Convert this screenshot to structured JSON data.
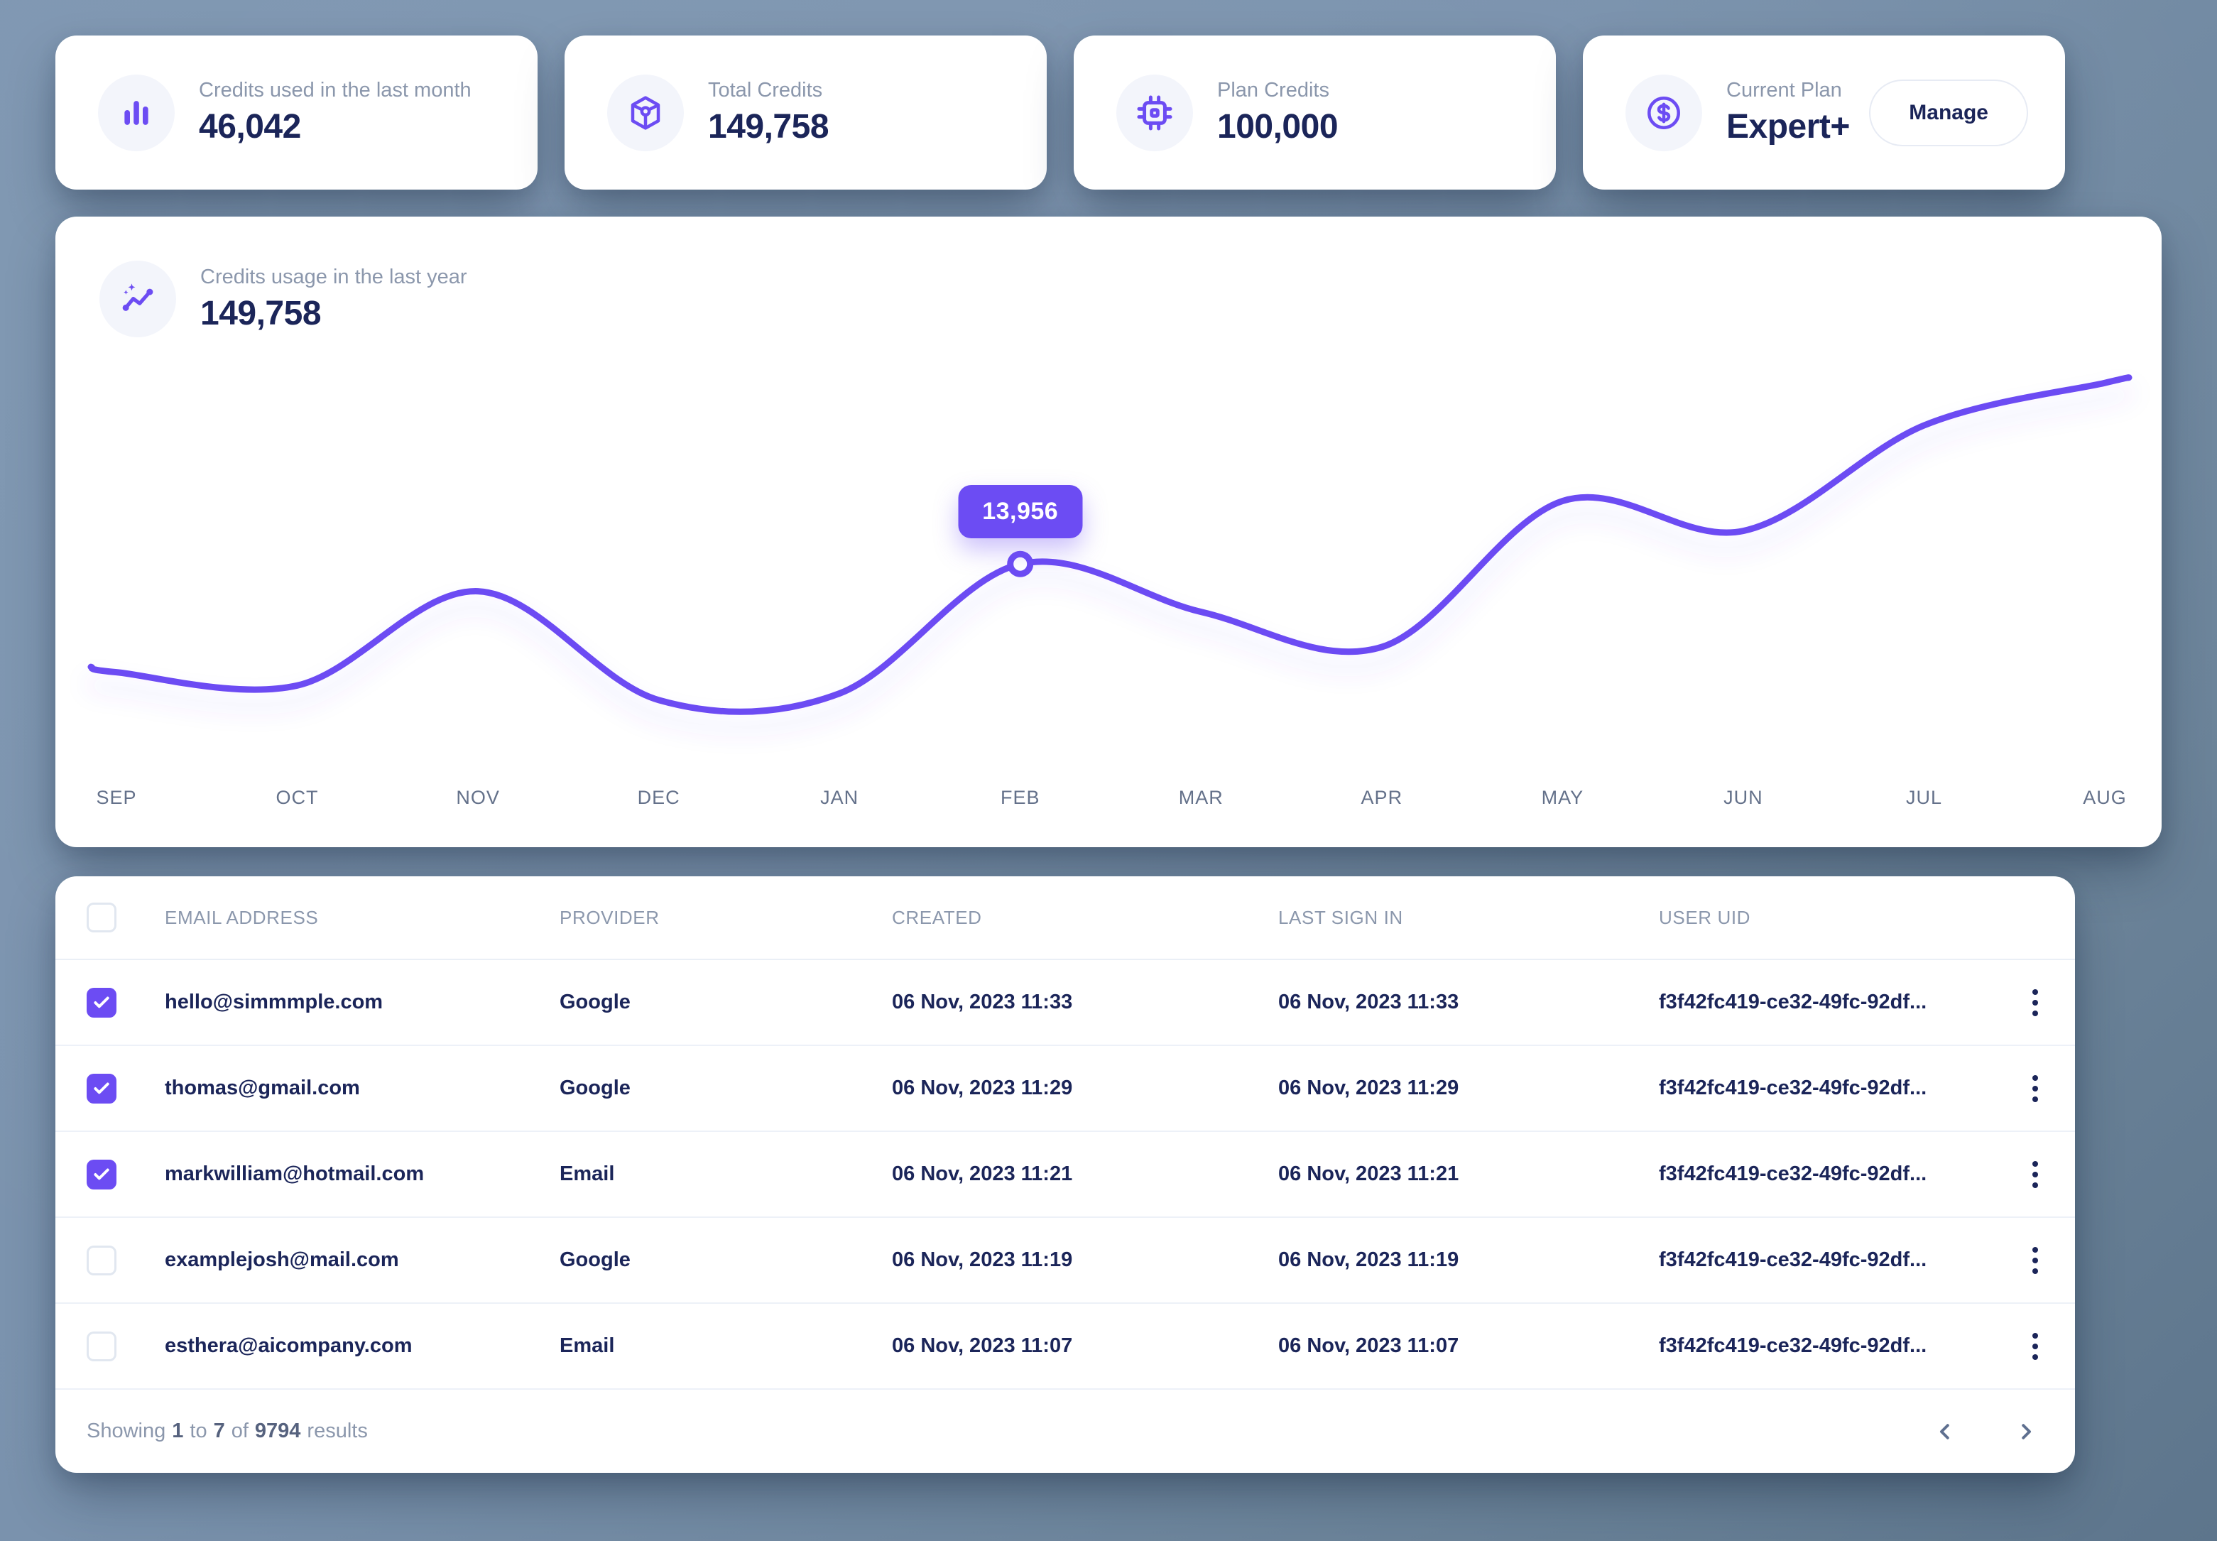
{
  "colors": {
    "accent": "#6C4CF3",
    "navy": "#1B2559",
    "label_gray": "#8B97AC",
    "axis_gray": "#64718A",
    "background_slate": "#7A92AD",
    "card_white": "#FFFFFF",
    "row_border": "#EDF1F8"
  },
  "stat_cards": [
    {
      "icon": "bar-chart-icon",
      "label": "Credits used in the last month",
      "value": "46,042"
    },
    {
      "icon": "cube-icon",
      "label": "Total Credits",
      "value": "149,758"
    },
    {
      "icon": "chip-icon",
      "label": "Plan Credits",
      "value": "100,000"
    },
    {
      "icon": "dollar-icon",
      "label": "Current Plan",
      "value": "Expert+",
      "action_label": "Manage"
    }
  ],
  "chart_card": {
    "icon": "trend-line-icon",
    "label": "Credits usage in the last year",
    "value": "149,758"
  },
  "chart_data": {
    "type": "line",
    "title": "Credits usage in the last year",
    "x": [
      "SEP",
      "OCT",
      "NOV",
      "DEC",
      "JAN",
      "FEB",
      "MAR",
      "APR",
      "MAY",
      "JUN",
      "JUL",
      "AUG"
    ],
    "values": [
      5800,
      4800,
      11900,
      3700,
      4200,
      13956,
      10350,
      7700,
      18700,
      16450,
      24400,
      27600
    ],
    "ylim": [
      0,
      29000
    ],
    "grid": false,
    "legend": "none",
    "highlight": {
      "index": 5,
      "month": "FEB",
      "label": "13,956",
      "value": 13956
    }
  },
  "table": {
    "columns": [
      "EMAIL ADDRESS",
      "PROVIDER",
      "CREATED",
      "LAST SIGN IN",
      "USER UID"
    ],
    "rows": [
      {
        "checked": true,
        "email": "hello@simmmple.com",
        "provider": "Google",
        "created": "06 Nov, 2023 11:33",
        "last_sign_in": "06 Nov, 2023 11:33",
        "user_uid": "f3f42fc419-ce32-49fc-92df..."
      },
      {
        "checked": true,
        "email": "thomas@gmail.com",
        "provider": "Google",
        "created": "06 Nov, 2023 11:29",
        "last_sign_in": "06 Nov, 2023 11:29",
        "user_uid": "f3f42fc419-ce32-49fc-92df..."
      },
      {
        "checked": true,
        "email": "markwilliam@hotmail.com",
        "provider": "Email",
        "created": "06 Nov, 2023 11:21",
        "last_sign_in": "06 Nov, 2023 11:21",
        "user_uid": "f3f42fc419-ce32-49fc-92df..."
      },
      {
        "checked": false,
        "email": "examplejosh@mail.com",
        "provider": "Google",
        "created": "06 Nov, 2023 11:19",
        "last_sign_in": "06 Nov, 2023 11:19",
        "user_uid": "f3f42fc419-ce32-49fc-92df..."
      },
      {
        "checked": false,
        "email": "esthera@aicompany.com",
        "provider": "Email",
        "created": "06 Nov, 2023 11:07",
        "last_sign_in": "06 Nov, 2023 11:07",
        "user_uid": "f3f42fc419-ce32-49fc-92df..."
      }
    ],
    "footer": {
      "text_before": "Showing",
      "from": "1",
      "to_word": "to",
      "to": "7",
      "of_word": "of",
      "total": "9794",
      "text_after": "results"
    }
  }
}
